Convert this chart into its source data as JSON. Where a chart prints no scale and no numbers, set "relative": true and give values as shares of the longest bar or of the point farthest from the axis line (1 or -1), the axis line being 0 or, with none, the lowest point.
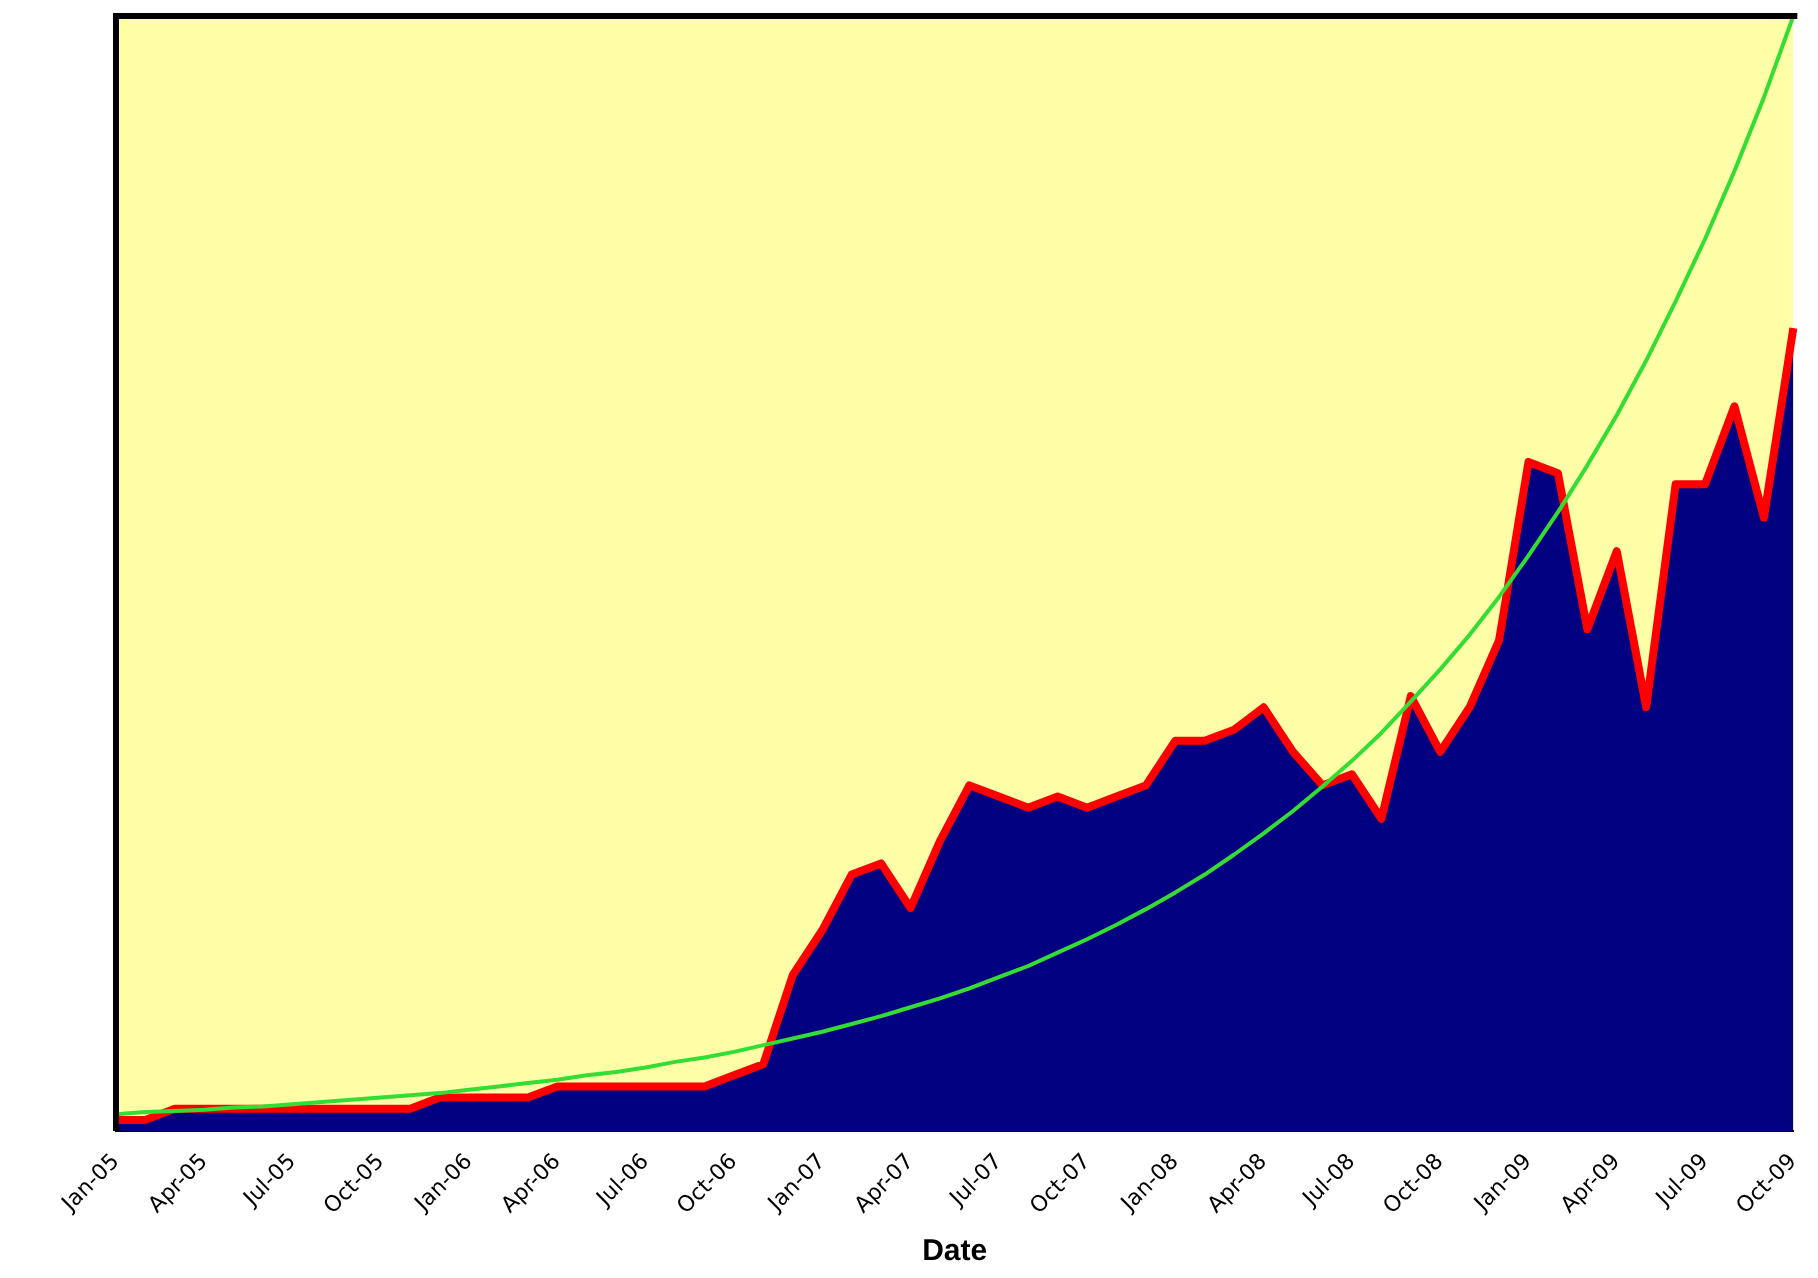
{
  "chart_data": {
    "type": "area",
    "xlabel": "Date",
    "relative": true,
    "legend": false,
    "grid": false,
    "marker": "none",
    "categories": [
      "Jan-05",
      null,
      null,
      "Apr-05",
      null,
      null,
      "Jul-05",
      null,
      null,
      "Oct-05",
      null,
      null,
      "Jan-06",
      null,
      null,
      "Apr-06",
      null,
      null,
      "Jul-06",
      null,
      null,
      "Oct-06",
      null,
      null,
      "Jan-07",
      null,
      null,
      "Apr-07",
      null,
      null,
      "Jul-07",
      null,
      null,
      "Oct-07",
      null,
      null,
      "Jan-08",
      null,
      null,
      "Apr-08",
      null,
      null,
      "Jul-08",
      null,
      null,
      "Oct-08",
      null,
      null,
      "Jan-09",
      null,
      null,
      "Apr-09",
      null,
      null,
      "Jul-09",
      null,
      null,
      "Oct-09"
    ],
    "series": [
      {
        "color": "#000080",
        "values": [
          0.01,
          0.01,
          0.02,
          0.02,
          0.02,
          0.02,
          0.02,
          0.02,
          0.02,
          0.02,
          0.02,
          0.03,
          0.03,
          0.03,
          0.03,
          0.04,
          0.04,
          0.04,
          0.04,
          0.04,
          0.04,
          0.05,
          0.06,
          0.14,
          0.18,
          0.23,
          0.24,
          0.2,
          0.26,
          0.31,
          0.3,
          0.29,
          0.3,
          0.29,
          0.3,
          0.31,
          0.35,
          0.35,
          0.36,
          0.38,
          0.34,
          0.31,
          0.32,
          0.28,
          0.39,
          0.34,
          0.38,
          0.44,
          0.6,
          0.59,
          0.45,
          0.52,
          0.38,
          0.58,
          0.58,
          0.65,
          0.55,
          0.72
        ]
      },
      {
        "type": "line",
        "color": "#ff0000",
        "values": [
          0.01,
          0.01,
          0.02,
          0.02,
          0.02,
          0.02,
          0.02,
          0.02,
          0.02,
          0.02,
          0.02,
          0.03,
          0.03,
          0.03,
          0.03,
          0.04,
          0.04,
          0.04,
          0.04,
          0.04,
          0.04,
          0.05,
          0.06,
          0.14,
          0.18,
          0.23,
          0.24,
          0.2,
          0.26,
          0.31,
          0.3,
          0.29,
          0.3,
          0.29,
          0.3,
          0.31,
          0.35,
          0.35,
          0.36,
          0.38,
          0.34,
          0.31,
          0.32,
          0.28,
          0.39,
          0.34,
          0.38,
          0.44,
          0.6,
          0.59,
          0.45,
          0.52,
          0.38,
          0.58,
          0.58,
          0.65,
          0.55,
          0.72
        ]
      },
      {
        "type": "line",
        "color": "#33dd33",
        "values": [
          0.015,
          0.017,
          0.018,
          0.019,
          0.021,
          0.022,
          0.024,
          0.026,
          0.028,
          0.03,
          0.032,
          0.034,
          0.037,
          0.04,
          0.043,
          0.046,
          0.05,
          0.053,
          0.057,
          0.062,
          0.066,
          0.071,
          0.077,
          0.083,
          0.089,
          0.096,
          0.103,
          0.111,
          0.119,
          0.128,
          0.138,
          0.148,
          0.16,
          0.172,
          0.185,
          0.199,
          0.214,
          0.23,
          0.248,
          0.267,
          0.287,
          0.309,
          0.332,
          0.357,
          0.385,
          0.414,
          0.445,
          0.479,
          0.516,
          0.555,
          0.597,
          0.642,
          0.691,
          0.744,
          0.8,
          0.861,
          0.927,
          1
        ]
      }
    ]
  }
}
